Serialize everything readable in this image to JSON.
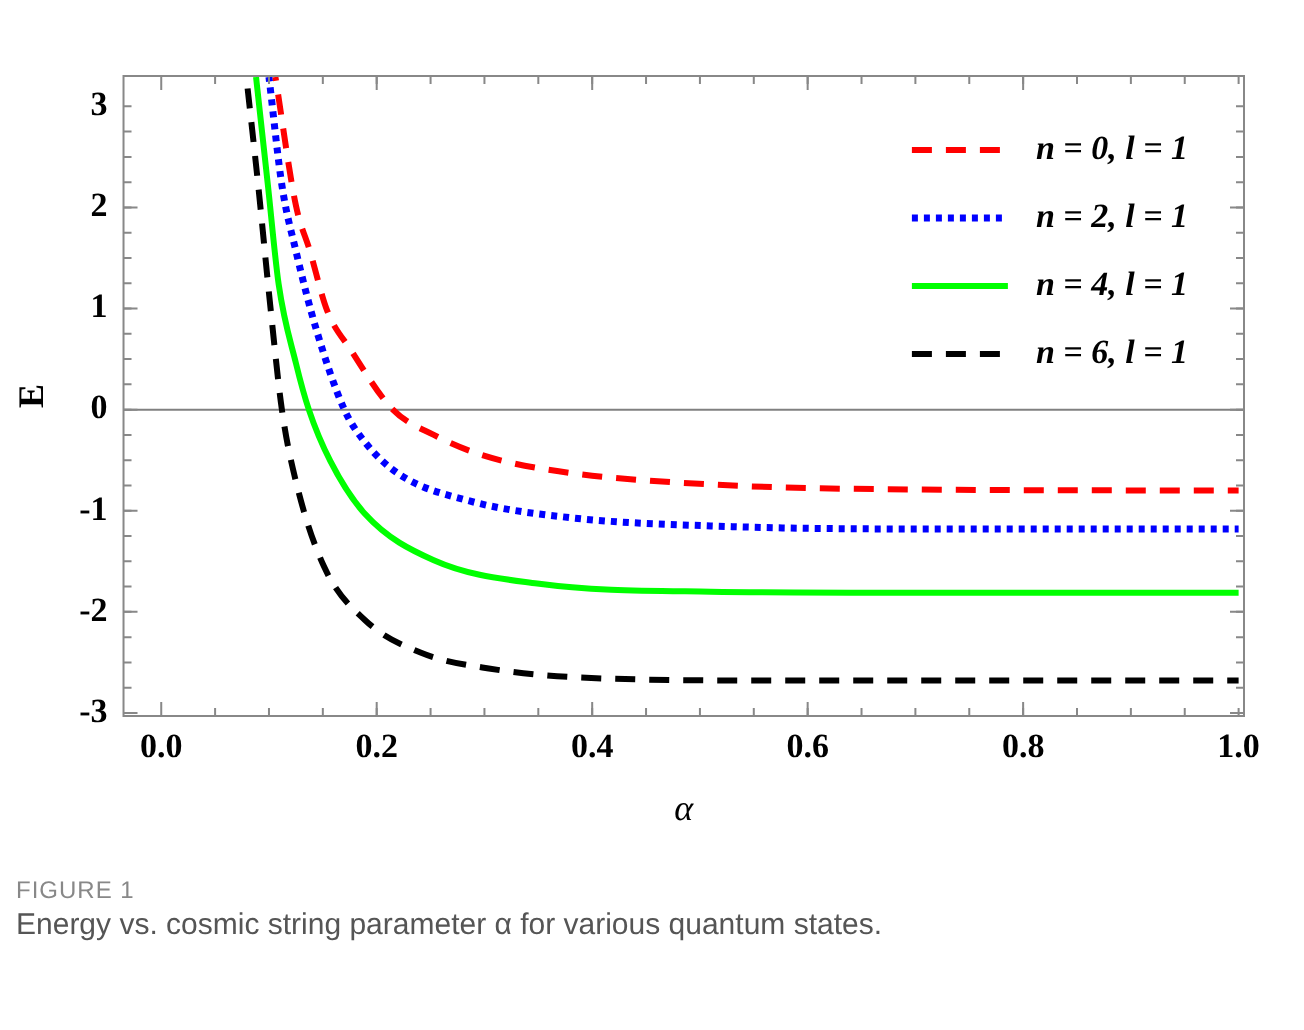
{
  "chart_data": {
    "type": "line",
    "xlabel": "α",
    "ylabel": "E",
    "xlim": [
      -0.035,
      1.005
    ],
    "ylim": [
      -3.03,
      3.3
    ],
    "xticks": [
      {
        "value": 0,
        "label": "0.0"
      },
      0.2,
      0.4,
      0.6,
      0.8,
      {
        "value": 1,
        "label": "1.0"
      }
    ],
    "yticks": [
      -3,
      -2,
      -1,
      0,
      1,
      2,
      3
    ],
    "grid": false,
    "legend": "top right",
    "marker": "none",
    "ref_lines": [
      {
        "axis": "y",
        "value": 0,
        "color": "#808080"
      }
    ],
    "annotations": [
      "FIGURE 1",
      "Energy vs. cosmic string parameter α for various quantum states."
    ],
    "series": [
      {
        "name": "n = 0, l = 1",
        "color": "#ff0000",
        "line_style": "dashed",
        "x": [
          0.106,
          0.125,
          0.138,
          0.154,
          0.176,
          0.215,
          0.253,
          0.298,
          0.369,
          0.51,
          0.7,
          1.0
        ],
        "values": [
          3.29,
          2.02,
          1.57,
          0.98,
          0.59,
          0,
          -0.25,
          -0.45,
          -0.61,
          -0.74,
          -0.79,
          -0.8
        ]
      },
      {
        "name": "n = 2, l = 1",
        "color": "#0000ff",
        "line_style": "dotted",
        "x": [
          0.1,
          0.112,
          0.125,
          0.144,
          0.17,
          0.189,
          0.221,
          0.285,
          0.381,
          0.51,
          0.7,
          1.0
        ],
        "values": [
          3.29,
          2.22,
          1.57,
          0.79,
          0,
          -0.32,
          -0.64,
          -0.9,
          -1.07,
          -1.15,
          -1.18,
          -1.18
        ]
      },
      {
        "name": "n = 4, l = 1",
        "color": "#00ff00",
        "line_style": "solid",
        "x": [
          0.088,
          0.099,
          0.109,
          0.125,
          0.137,
          0.157,
          0.189,
          0.253,
          0.349,
          0.51,
          0.7,
          1.0
        ],
        "values": [
          3.29,
          2.22,
          1.24,
          0.46,
          0,
          -0.51,
          -1.03,
          -1.49,
          -1.72,
          -1.8,
          -1.81,
          -1.81
        ]
      },
      {
        "name": "n = 6, l = 1",
        "color": "#000000",
        "line_style": "dashed",
        "x": [
          0.079,
          0.09,
          0.101,
          0.112,
          0.125,
          0.151,
          0.189,
          0.24,
          0.304,
          0.413,
          0.6,
          1.0
        ],
        "values": [
          3.29,
          2.22,
          1.05,
          0,
          -0.71,
          -1.55,
          -2.08,
          -2.4,
          -2.56,
          -2.66,
          -2.68,
          -2.68
        ]
      }
    ]
  }
}
